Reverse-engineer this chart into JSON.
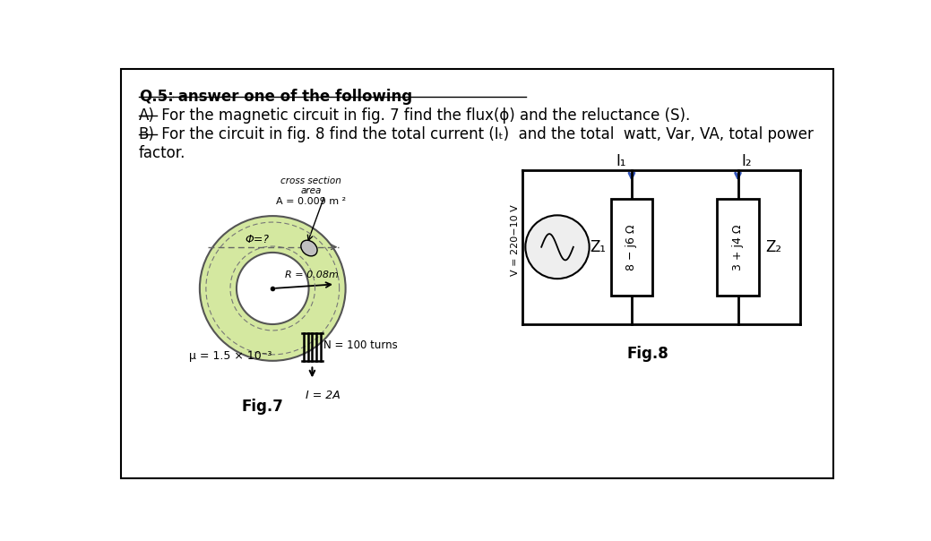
{
  "title_q": "Q.5:",
  "title_bold": " answer one of the following",
  "line_a_prefix": "A)",
  "line_a_rest": " For the magnetic circuit in fig. 7 find the flux(ϕ) and the reluctance (S).",
  "line_b_prefix": "B)",
  "line_b_rest": " For the circuit in fig. 8 find the total current (Iₜ)  and the total  watt, Var, VA, total power",
  "line_b2": "factor.",
  "fig7_cross_section": "cross section",
  "fig7_area": "area",
  "fig7_A_val": "A = 0.009 m ²",
  "fig7_phi": "Φ=?",
  "fig7_R": "R = 0.08m",
  "fig7_N": "N = 100 turns",
  "fig7_mu": "μ = 1.5 × 10⁻³",
  "fig7_I": "I = 2A",
  "fig7_caption": "Fig.7",
  "fig8_V": "V = 220−10 V",
  "fig8_Z1": "Z₁",
  "fig8_Z2": "Z₂",
  "fig8_z1_val": "8 − j6 Ω",
  "fig8_z2_val": "3 + j4 Ω",
  "fig8_I1": "I₁",
  "fig8_I2": "I₂",
  "fig8_caption": "Fig.8",
  "bg_color": "#ffffff",
  "toroid_color": "#d4e8a0",
  "toroid_edge": "#555555",
  "box_fill": "#ffffff",
  "arrow_color_blue": "#3355bb"
}
